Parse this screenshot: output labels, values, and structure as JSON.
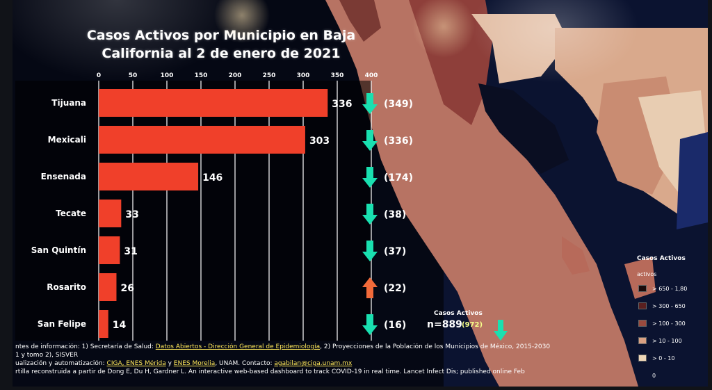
{
  "title_line1": "Casos Activos por Municipio en Baja",
  "title_line2": "California al 2 de enero de 2021",
  "chart_data": {
    "type": "bar",
    "orientation": "horizontal",
    "title": "Casos Activos por Municipio en Baja California al 2 de enero de 2021",
    "categories": [
      "Tijuana",
      "Mexicali",
      "Ensenada",
      "Tecate",
      "San Quintín",
      "Rosarito",
      "San Felipe"
    ],
    "values": [
      336,
      303,
      146,
      33,
      31,
      26,
      14
    ],
    "previous_values": [
      "(349)",
      "(336)",
      "(174)",
      "(38)",
      "(37)",
      "(22)",
      "(16)"
    ],
    "trend": [
      "down",
      "down",
      "down",
      "down",
      "down",
      "up",
      "down"
    ],
    "x_ticks": [
      0,
      50,
      100,
      150,
      200,
      250,
      300,
      350,
      400
    ],
    "xlim": [
      0,
      400
    ],
    "grid": true,
    "bar_color": "#f0402a"
  },
  "totals": {
    "label": "Casos Activos",
    "total": "n=889",
    "previous": "(972)",
    "trend": "down"
  },
  "colors": {
    "arrow_down": "#19e0b0",
    "arrow_up": "#f26a3a"
  },
  "legend": {
    "title": "Casos Activos",
    "subtitle": "activos",
    "items": [
      {
        "label": "> 650 - 1,80",
        "color": "#1a0a0a"
      },
      {
        "label": "> 300 - 650",
        "color": "#5a2020"
      },
      {
        "label": "> 100 - 300",
        "color": "#9a4a3e"
      },
      {
        "label": "> 10 - 100",
        "color": "#d9a082"
      },
      {
        "label": "> 0 - 10",
        "color": "#efd7b8"
      }
    ],
    "zero_label": "0"
  },
  "sources": {
    "line1_pre": "ntes de información: 1) Secretaría de Salud: ",
    "line1_link1": "Datos Abiertos - Dirección General de Epidemiología",
    "line1_post": ", 2) Proyecciones de la Población de los Municipios de México, 2015-2030",
    "line2": "1 y tomo 2), SISVER",
    "line3_pre": "ualización y automatización: ",
    "line3_link1": "CIGA, ENES Mérida",
    "line3_mid": " y ",
    "line3_link2": "ENES Morelia",
    "line3_post": ", UNAM. Contacto: ",
    "line3_link3": "agabilan@ciga.unam.mx",
    "line4": "rtilla reconstruida a partir de Dong E, Du H, Gardner L. An interactive web-based dashboard to track COVID-19 in real time. Lancet Infect Dis; published online Feb"
  }
}
